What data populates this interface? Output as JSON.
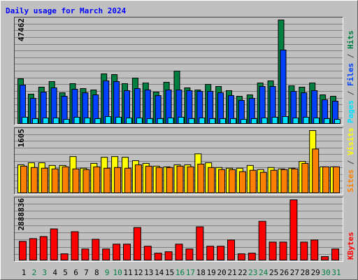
{
  "chart_data": {
    "type": "bar",
    "title": "Daily usage for March 2024",
    "categories": [
      "1",
      "2",
      "3",
      "4",
      "5",
      "6",
      "7",
      "8",
      "9",
      "10",
      "11",
      "12",
      "13",
      "14",
      "15",
      "16",
      "17",
      "18",
      "19",
      "20",
      "21",
      "22",
      "23",
      "24",
      "25",
      "26",
      "27",
      "28",
      "29",
      "30",
      "31"
    ],
    "category_colors": [
      "#000000",
      "#008040",
      "#008040",
      "#000000",
      "#000000",
      "#000000",
      "#000000",
      "#000000",
      "#008040",
      "#008040",
      "#000000",
      "#000000",
      "#000000",
      "#000000",
      "#000000",
      "#008040",
      "#008040",
      "#000000",
      "#000000",
      "#000000",
      "#000000",
      "#000000",
      "#008040",
      "#008040",
      "#000000",
      "#000000",
      "#000000",
      "#000000",
      "#000000",
      "#008040",
      "#008040"
    ],
    "legend_separator": " / ",
    "panels": [
      {
        "ylim": [
          0,
          47462
        ],
        "yticks": [
          47462
        ],
        "series": [
          {
            "name": "Hits",
            "color": "#008040",
            "values": [
              20525,
              13469,
              16676,
              19242,
              14110,
              18280,
              16035,
              15394,
              22770,
              22449,
              18280,
              20846,
              18601,
              14432,
              18921,
              24053,
              16356,
              15394,
              17959,
              16997,
              15073,
              12507,
              13149,
              18601,
              19563,
              47462,
              17318,
              16676,
              18601,
              13149,
              12507
            ]
          },
          {
            "name": "Files",
            "color": "#0040ff",
            "values": [
              17639,
              11545,
              14432,
              16356,
              12507,
              15714,
              14111,
              13149,
              19563,
              19242,
              15073,
              16035,
              15394,
              12828,
              15394,
              15394,
              15073,
              14752,
              14752,
              14111,
              12828,
              10583,
              11545,
              16997,
              16997,
              33674,
              14752,
              14111,
              15073,
              10904,
              10262
            ]
          },
          {
            "name": "Pages",
            "color": "#00e0ff",
            "values": [
              2886,
              2245,
              2565,
              2565,
              1924,
              2886,
              2565,
              2245,
              3207,
              2886,
              2565,
              2565,
              2245,
              2245,
              2565,
              2886,
              2245,
              2565,
              2245,
              2245,
              2245,
              1924,
              2245,
              2565,
              2886,
              3207,
              2565,
              2886,
              2565,
              2245,
              1924
            ]
          }
        ]
      },
      {
        "ylim": [
          0,
          1605
        ],
        "yticks": [
          1605
        ],
        "series": [
          {
            "name": "Visits",
            "color": "#ffff00",
            "values": [
              723,
              776,
              776,
              706,
              706,
              935,
              635,
              759,
              917,
              935,
              917,
              829,
              759,
              688,
              670,
              723,
              723,
              1005,
              776,
              653,
              635,
              635,
              706,
              600,
              653,
              617,
              635,
              811,
              1605,
              670,
              670
            ]
          },
          {
            "name": "Sites",
            "color": "#ff8000",
            "values": [
              688,
              653,
              635,
              617,
              670,
              617,
              600,
              670,
              635,
              653,
              635,
              723,
              688,
              653,
              653,
              688,
              670,
              741,
              653,
              600,
              600,
              547,
              582,
              529,
              582,
              600,
              617,
              759,
              1129,
              670,
              670
            ]
          }
        ]
      },
      {
        "ylim": [
          0,
          2888836
        ],
        "yticks": [
          2888836
        ],
        "series": [
          {
            "name": "KBytes",
            "color": "#ff0000",
            "values": [
              896535,
              1029355,
              1128970,
              1494225,
              298845,
              1361405,
              531280,
              996150,
              531280,
              763715,
              763715,
              1560635,
              664100,
              332050,
              398460,
              763715,
              531280,
              1593840,
              664100,
              664100,
              962945,
              298845,
              332050,
              1859480,
              863330,
              863330,
              2888836,
              863330,
              962945,
              166025,
              531280
            ]
          }
        ]
      }
    ]
  }
}
